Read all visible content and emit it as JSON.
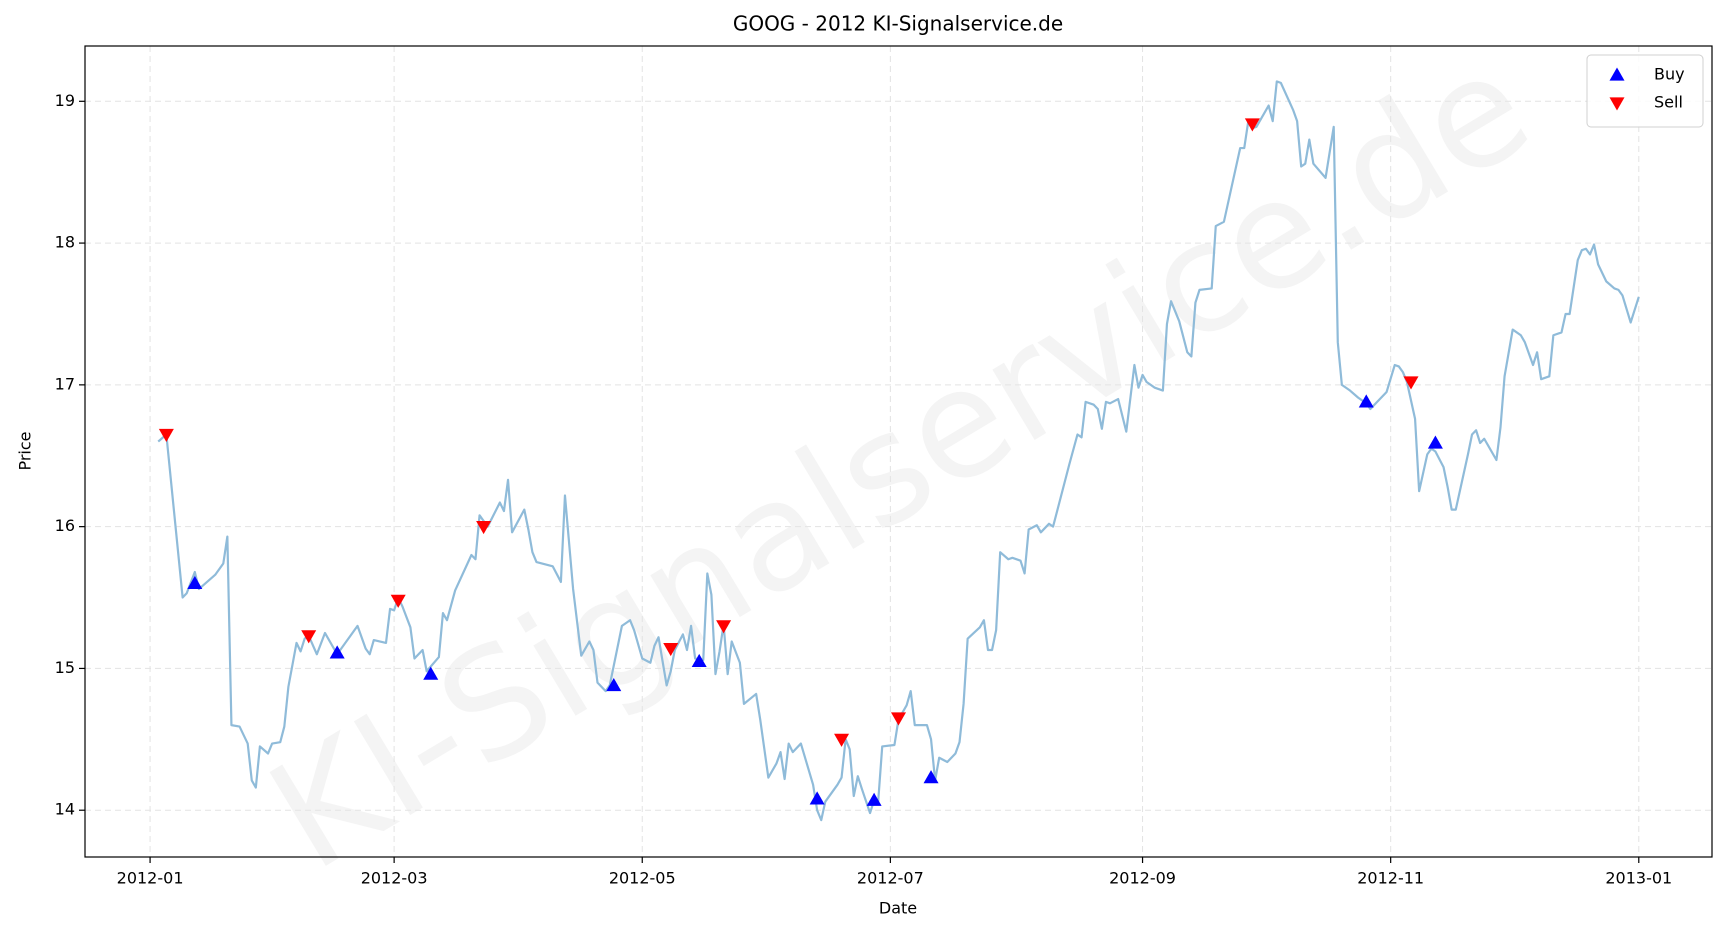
{
  "chart_data": {
    "type": "line",
    "title": "GOOG - 2012 KI-Signalservice.de",
    "xlabel": "Date",
    "ylabel": "Price",
    "watermark": "KI-Signalservice.de",
    "color": "#8fbbd9",
    "grid": true,
    "legend": "upper right",
    "xlim": [
      "2011-12-16",
      "2013-01-19"
    ],
    "ylim": [
      13.67,
      19.39
    ],
    "xticks": [
      {
        "value": "2012-01-01",
        "label": "2012-01"
      },
      {
        "value": "2012-03-01",
        "label": "2012-03"
      },
      {
        "value": "2012-05-01",
        "label": "2012-05"
      },
      {
        "value": "2012-07-01",
        "label": "2012-07"
      },
      {
        "value": "2012-09-01",
        "label": "2012-09"
      },
      {
        "value": "2012-11-01",
        "label": "2012-11"
      },
      {
        "value": "2013-01-01",
        "label": "2013-01"
      }
    ],
    "yticks": [
      14,
      15,
      16,
      17,
      18,
      19
    ],
    "x": [
      "2012-01-03",
      "2012-01-05",
      "2012-01-09",
      "2012-01-10",
      "2012-01-12",
      "2012-01-13",
      "2012-01-17",
      "2012-01-19",
      "2012-01-20",
      "2012-01-21",
      "2012-01-23",
      "2012-01-25",
      "2012-01-26",
      "2012-01-27",
      "2012-01-28",
      "2012-01-30",
      "2012-01-31",
      "2012-02-02",
      "2012-02-03",
      "2012-02-04",
      "2012-02-06",
      "2012-02-07",
      "2012-02-08",
      "2012-02-09",
      "2012-02-11",
      "2012-02-13",
      "2012-02-15",
      "2012-02-16",
      "2012-02-18",
      "2012-02-21",
      "2012-02-23",
      "2012-02-24",
      "2012-02-25",
      "2012-02-28",
      "2012-02-29",
      "2012-03-01",
      "2012-03-02",
      "2012-03-03",
      "2012-03-05",
      "2012-03-06",
      "2012-03-08",
      "2012-03-09",
      "2012-03-12",
      "2012-03-13",
      "2012-03-14",
      "2012-03-16",
      "2012-03-20",
      "2012-03-21",
      "2012-03-22",
      "2012-03-24",
      "2012-03-27",
      "2012-03-28",
      "2012-03-29",
      "2012-03-30",
      "2012-04-02",
      "2012-04-03",
      "2012-04-04",
      "2012-04-05",
      "2012-04-09",
      "2012-04-11",
      "2012-04-12",
      "2012-04-14",
      "2012-04-16",
      "2012-04-18",
      "2012-04-19",
      "2012-04-20",
      "2012-04-22",
      "2012-04-23",
      "2012-04-26",
      "2012-04-28",
      "2012-04-29",
      "2012-05-01",
      "2012-05-03",
      "2012-05-04",
      "2012-05-05",
      "2012-05-07",
      "2012-05-08",
      "2012-05-09",
      "2012-05-11",
      "2012-05-12",
      "2012-05-13",
      "2012-05-14",
      "2012-05-16",
      "2012-05-17",
      "2012-05-18",
      "2012-05-19",
      "2012-05-20",
      "2012-05-21",
      "2012-05-22",
      "2012-05-23",
      "2012-05-25",
      "2012-05-26",
      "2012-05-29",
      "2012-05-30",
      "2012-06-01",
      "2012-06-03",
      "2012-06-04",
      "2012-06-05",
      "2012-06-06",
      "2012-06-07",
      "2012-06-09",
      "2012-06-12",
      "2012-06-13",
      "2012-06-14",
      "2012-06-15",
      "2012-06-18",
      "2012-06-19",
      "2012-06-20",
      "2012-06-21",
      "2012-06-22",
      "2012-06-23",
      "2012-06-24",
      "2012-06-26",
      "2012-06-27",
      "2012-06-28",
      "2012-06-29",
      "2012-07-02",
      "2012-07-03",
      "2012-07-05",
      "2012-07-06",
      "2012-07-07",
      "2012-07-10",
      "2012-07-11",
      "2012-07-12",
      "2012-07-13",
      "2012-07-15",
      "2012-07-17",
      "2012-07-18",
      "2012-07-19",
      "2012-07-20",
      "2012-07-23",
      "2012-07-24",
      "2012-07-25",
      "2012-07-26",
      "2012-07-27",
      "2012-07-28",
      "2012-07-30",
      "2012-07-31",
      "2012-08-02",
      "2012-08-03",
      "2012-08-04",
      "2012-08-06",
      "2012-08-07",
      "2012-08-09",
      "2012-08-10",
      "2012-08-14",
      "2012-08-16",
      "2012-08-17",
      "2012-08-18",
      "2012-08-20",
      "2012-08-21",
      "2012-08-22",
      "2012-08-23",
      "2012-08-24",
      "2012-08-26",
      "2012-08-28",
      "2012-08-30",
      "2012-08-31",
      "2012-09-01",
      "2012-09-02",
      "2012-09-04",
      "2012-09-06",
      "2012-09-07",
      "2012-09-08",
      "2012-09-10",
      "2012-09-12",
      "2012-09-13",
      "2012-09-14",
      "2012-09-15",
      "2012-09-18",
      "2012-09-19",
      "2012-09-21",
      "2012-09-25",
      "2012-09-26",
      "2012-09-27",
      "2012-09-28",
      "2012-09-29",
      "2012-10-02",
      "2012-10-03",
      "2012-10-04",
      "2012-10-05",
      "2012-10-08",
      "2012-10-09",
      "2012-10-10",
      "2012-10-11",
      "2012-10-12",
      "2012-10-13",
      "2012-10-16",
      "2012-10-18",
      "2012-10-19",
      "2012-10-20",
      "2012-10-22",
      "2012-10-24",
      "2012-10-26",
      "2012-10-27",
      "2012-10-31",
      "2012-11-02",
      "2012-11-03",
      "2012-11-04",
      "2012-11-05",
      "2012-11-07",
      "2012-11-08",
      "2012-11-10",
      "2012-11-11",
      "2012-11-12",
      "2012-11-14",
      "2012-11-15",
      "2012-11-16",
      "2012-11-17",
      "2012-11-20",
      "2012-11-21",
      "2012-11-22",
      "2012-11-23",
      "2012-11-24",
      "2012-11-25",
      "2012-11-27",
      "2012-11-28",
      "2012-11-29",
      "2012-12-01",
      "2012-12-03",
      "2012-12-04",
      "2012-12-06",
      "2012-12-07",
      "2012-12-08",
      "2012-12-10",
      "2012-12-11",
      "2012-12-13",
      "2012-12-14",
      "2012-12-15",
      "2012-12-17",
      "2012-12-18",
      "2012-12-19",
      "2012-12-20",
      "2012-12-21",
      "2012-12-22",
      "2012-12-24",
      "2012-12-26",
      "2012-12-27",
      "2012-12-28",
      "2012-12-30",
      "2012-12-31",
      "2013-01-01"
    ],
    "values": [
      16.6,
      16.65,
      15.5,
      15.53,
      15.68,
      15.56,
      15.66,
      15.74,
      15.93,
      14.6,
      14.59,
      14.47,
      14.21,
      14.16,
      14.45,
      14.4,
      14.47,
      14.48,
      14.59,
      14.87,
      15.18,
      15.12,
      15.21,
      15.23,
      15.1,
      15.25,
      15.15,
      15.1,
      15.18,
      15.3,
      15.14,
      15.1,
      15.2,
      15.18,
      15.42,
      15.41,
      15.5,
      15.44,
      15.29,
      15.07,
      15.13,
      14.98,
      15.08,
      15.39,
      15.34,
      15.55,
      15.8,
      15.77,
      16.08,
      16.0,
      16.17,
      16.11,
      16.33,
      15.96,
      16.12,
      15.98,
      15.82,
      15.75,
      15.72,
      15.61,
      16.22,
      15.56,
      15.09,
      15.19,
      15.13,
      14.9,
      14.84,
      14.88,
      15.3,
      15.34,
      15.27,
      15.07,
      15.04,
      15.16,
      15.22,
      14.88,
      14.98,
      15.13,
      15.24,
      15.13,
      15.3,
      15.07,
      15.06,
      15.67,
      15.52,
      14.96,
      15.12,
      15.31,
      14.96,
      15.19,
      15.04,
      14.75,
      14.82,
      14.64,
      14.23,
      14.33,
      14.41,
      14.22,
      14.47,
      14.41,
      14.47,
      14.18,
      14.0,
      13.93,
      14.06,
      14.18,
      14.23,
      14.5,
      14.43,
      14.1,
      14.24,
      14.15,
      13.98,
      14.07,
      14.06,
      14.45,
      14.46,
      14.64,
      14.74,
      14.84,
      14.6,
      14.6,
      14.5,
      14.21,
      14.37,
      14.34,
      14.4,
      14.48,
      14.75,
      15.21,
      15.29,
      15.34,
      15.13,
      15.13,
      15.27,
      15.82,
      15.77,
      15.78,
      15.76,
      15.67,
      15.98,
      16.01,
      15.96,
      16.02,
      16.0,
      16.44,
      16.65,
      16.63,
      16.88,
      16.86,
      16.83,
      16.69,
      16.88,
      16.87,
      16.9,
      16.67,
      17.14,
      16.98,
      17.07,
      17.02,
      16.98,
      16.96,
      17.43,
      17.59,
      17.45,
      17.23,
      17.2,
      17.58,
      17.67,
      17.68,
      18.12,
      18.15,
      18.67,
      18.67,
      18.86,
      18.81,
      18.82,
      18.97,
      18.86,
      19.14,
      19.13,
      18.94,
      18.86,
      18.54,
      18.56,
      18.73,
      18.56,
      18.46,
      18.82,
      17.3,
      17.0,
      16.96,
      16.91,
      16.87,
      16.83,
      16.95,
      17.14,
      17.13,
      17.09,
      17.02,
      16.76,
      16.25,
      16.51,
      16.55,
      16.53,
      16.42,
      16.28,
      16.12,
      16.12,
      16.51,
      16.65,
      16.68,
      16.59,
      16.62,
      16.57,
      16.47,
      16.7,
      17.06,
      17.39,
      17.35,
      17.3,
      17.14,
      17.23,
      17.04,
      17.06,
      17.35,
      17.37,
      17.5,
      17.5,
      17.88,
      17.95,
      17.96,
      17.92,
      17.99,
      17.85,
      17.73,
      17.68,
      17.67,
      17.63,
      17.44,
      17.53,
      17.62
    ],
    "markers": [
      {
        "name": "Buy",
        "color": "#0000ff",
        "marker": "^",
        "x": [
          "2012-01-12",
          "2012-02-16",
          "2012-03-10",
          "2012-04-24",
          "2012-05-15",
          "2012-06-13",
          "2012-06-27",
          "2012-07-11",
          "2012-10-26",
          "2012-11-12"
        ],
        "values": [
          15.6,
          15.11,
          14.96,
          14.88,
          15.05,
          14.08,
          14.07,
          14.23,
          16.88,
          16.59
        ]
      },
      {
        "name": "Sell",
        "color": "#ff0000",
        "marker": "v",
        "x": [
          "2012-01-05",
          "2012-02-09",
          "2012-03-02",
          "2012-03-23",
          "2012-05-08",
          "2012-05-21",
          "2012-06-19",
          "2012-07-03",
          "2012-09-28",
          "2012-11-06"
        ],
        "values": [
          16.65,
          15.23,
          15.48,
          16.0,
          15.14,
          15.3,
          14.5,
          14.65,
          18.84,
          17.02
        ]
      }
    ]
  }
}
